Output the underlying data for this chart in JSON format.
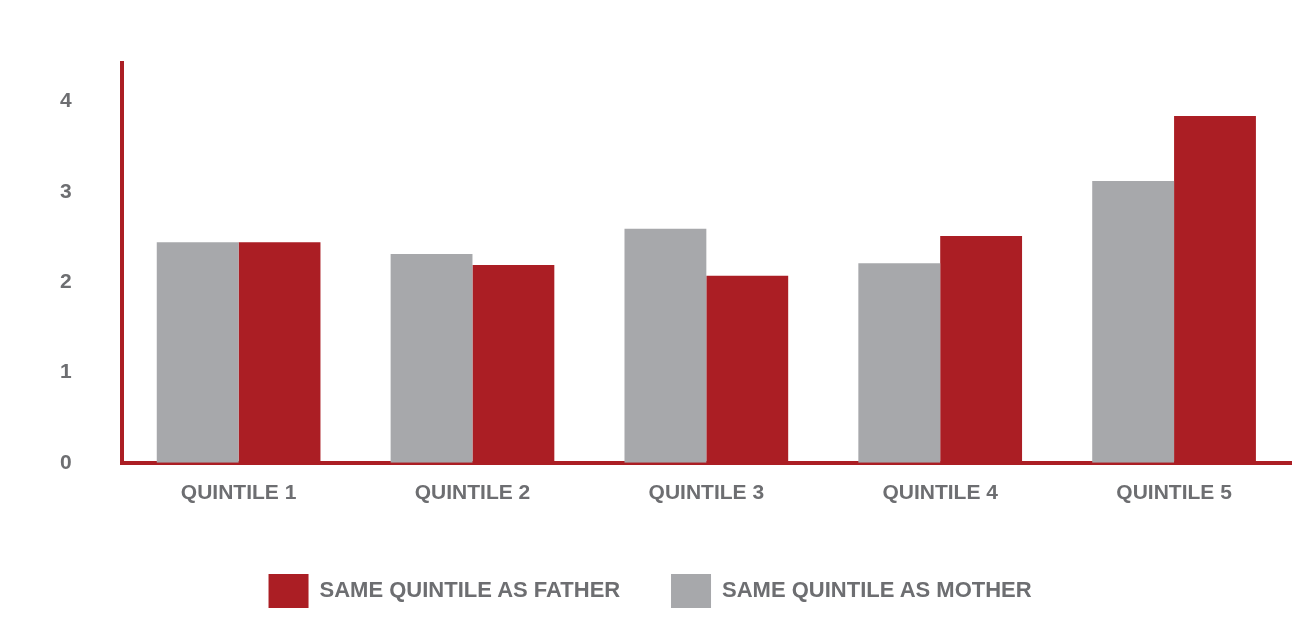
{
  "chart_data": {
    "type": "bar",
    "categories": [
      "QUINTILE 1",
      "QUINTILE 2",
      "QUINTILE 3",
      "QUINTILE 4",
      "QUINTILE 5"
    ],
    "series": [
      {
        "name": "SAME QUINTILE AS MOTHER",
        "color": "#a7a8ab",
        "values": [
          2.44,
          2.31,
          2.59,
          2.21,
          3.12
        ]
      },
      {
        "name": "SAME QUINTILE AS FATHER",
        "color": "#ab1e24",
        "values": [
          2.44,
          2.19,
          2.07,
          2.51,
          3.84
        ]
      }
    ],
    "ylim": [
      0,
      4.43
    ],
    "yticks": [
      0,
      1,
      2,
      3,
      4
    ],
    "grid": false,
    "legend": "bottom"
  }
}
